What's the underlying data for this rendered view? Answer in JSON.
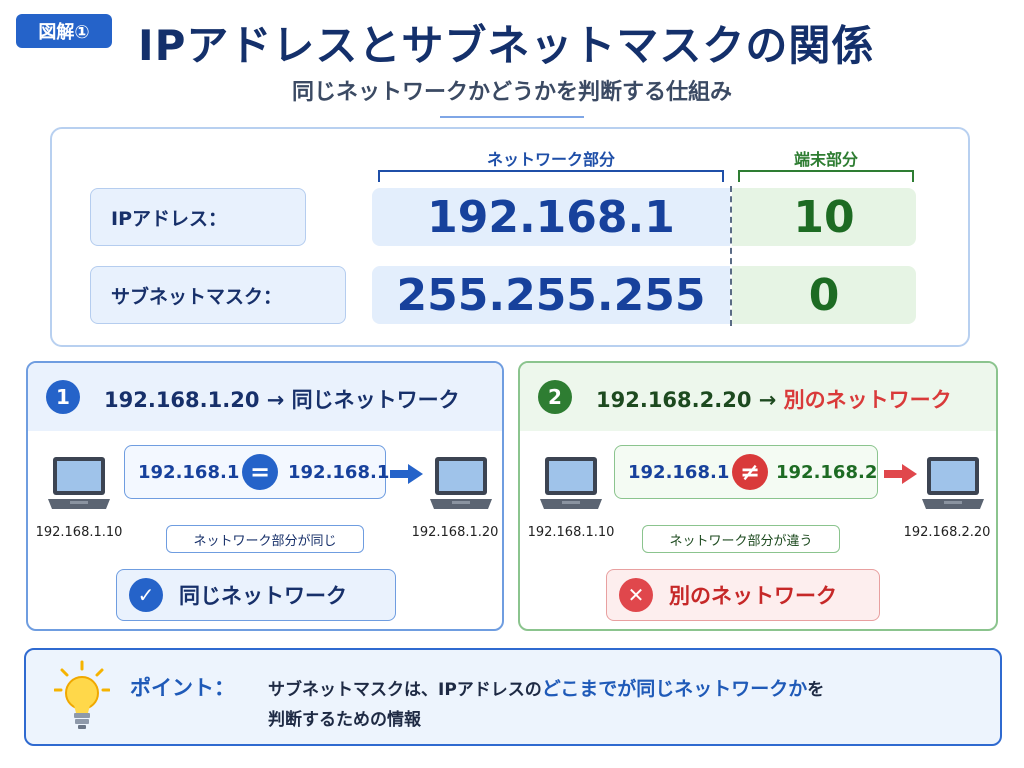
{
  "header": {
    "badge": "図解①",
    "title": "IPアドレスとサブネットマスクの関係",
    "subtitle": "同じネットワークかどうかを判断する仕組み"
  },
  "addressing": {
    "network_header": "ネットワーク部分",
    "host_header": "端末部分",
    "ip_label": "IPアドレス：",
    "ip_network": "192.168.1",
    "ip_host": "10",
    "mask_label": "サブネットマスク：",
    "mask_network": "255.255.255",
    "mask_host": "0"
  },
  "example1": {
    "number": "1",
    "title": "192.168.1.20 → 同じネットワーク",
    "source_device": "192.168.1.10",
    "dest_device": "192.168.1.20",
    "left_value": "192.168.1",
    "operator": "=",
    "right_value": "192.168.1",
    "note": "ネットワーク部分が同じ",
    "result": "同じネットワーク",
    "result_icon": "check-icon"
  },
  "example2": {
    "number": "2",
    "title_prefix": "192.168.2.20 → ",
    "title_highlight": "別のネットワーク",
    "source_device": "192.168.1.10",
    "dest_device": "192.168.2.20",
    "left_value": "192.168.1",
    "operator": "≠",
    "right_value": "192.168.2",
    "note": "ネットワーク部分が違う",
    "result": "別のネットワーク",
    "result_icon": "cross-icon"
  },
  "point": {
    "label": "ポイント：",
    "text_1": "サブネットマスクは、IPアドレスの",
    "text_emphasis": "どこまでが同じネットワークか",
    "text_2": "を",
    "text_3": "判断するための情報",
    "icon": "lightbulb-icon"
  },
  "colors": {
    "accent_blue": "#2563c9",
    "network_blue": "#17419c",
    "host_green": "#1d6b23",
    "danger_red": "#d93a3a"
  }
}
